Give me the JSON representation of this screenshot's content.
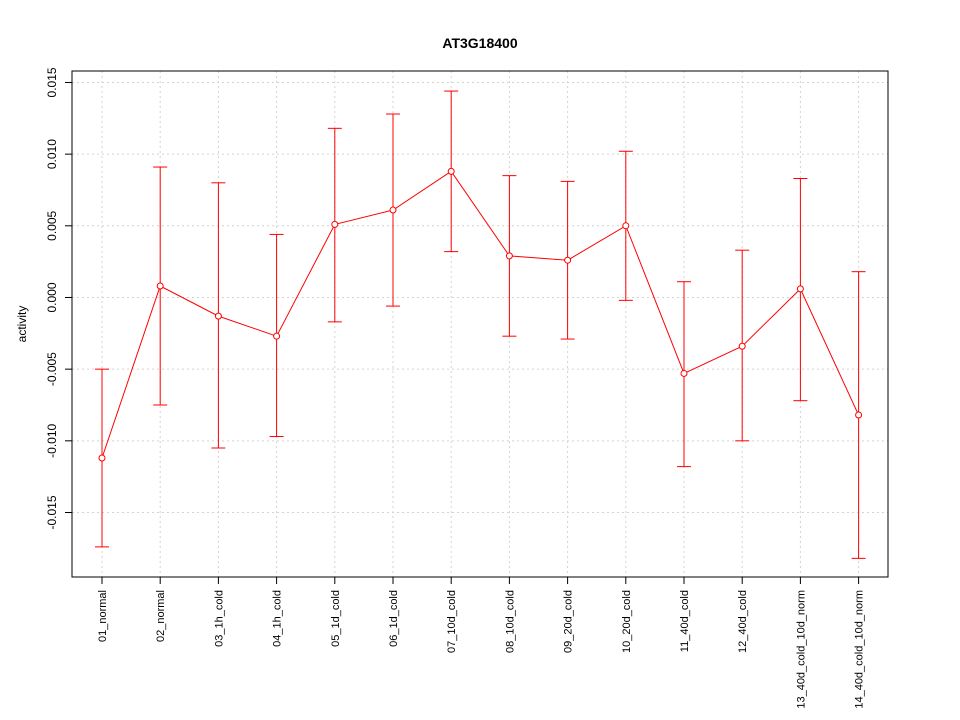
{
  "chart_data": {
    "type": "line",
    "title": "AT3G18400",
    "xlabel": "",
    "ylabel": "activity",
    "categories": [
      "01_normal",
      "02_normal",
      "03_1h_cold",
      "04_1h_cold",
      "05_1d_cold",
      "06_1d_cold",
      "07_10d_cold",
      "08_10d_cold",
      "09_20d_cold",
      "10_20d_cold",
      "11_40d_cold",
      "12_40d_cold",
      "13_40d_cold_10d_norm",
      "14_40d_cold_10d_norm"
    ],
    "values": [
      -0.0112,
      0.0008,
      -0.0013,
      -0.0027,
      0.0051,
      0.0061,
      0.0088,
      0.0029,
      0.0026,
      0.005,
      -0.0053,
      -0.0034,
      0.0006,
      -0.0082
    ],
    "upper": [
      -0.005,
      0.0091,
      0.008,
      0.0044,
      0.0118,
      0.0128,
      0.0144,
      0.0085,
      0.0081,
      0.0102,
      0.0011,
      0.0033,
      0.0083,
      0.0018
    ],
    "lower": [
      -0.0174,
      -0.0075,
      -0.0105,
      -0.0097,
      -0.0017,
      -0.0006,
      0.0032,
      -0.0027,
      -0.0029,
      -0.0002,
      -0.0118,
      -0.01,
      -0.0072,
      -0.0182
    ],
    "yticks": [
      -0.015,
      -0.01,
      -0.005,
      0.0,
      0.005,
      0.01,
      0.015
    ],
    "ytick_labels": [
      "-0.015",
      "-0.010",
      "-0.005",
      "0.000",
      "0.005",
      "0.010",
      "0.015"
    ],
    "ylim": [
      -0.0195,
      0.0158
    ],
    "grid": true,
    "color": "#ff0000"
  }
}
